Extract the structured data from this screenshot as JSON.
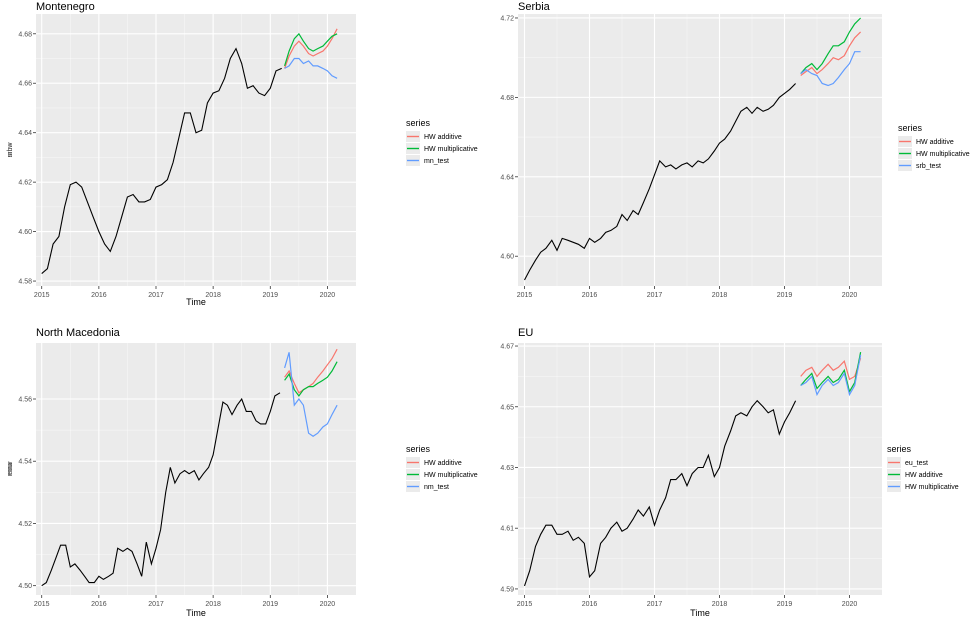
{
  "figure": {
    "background": "#ffffff",
    "panel_bg": "#ebebeb",
    "grid_color": "#ffffff",
    "line_color": "#000000"
  },
  "chart_data": [
    {
      "type": "line",
      "title": "Montenegro",
      "xlabel": "Time",
      "ylabel": "mnw",
      "legend_title": "series",
      "legend_position": "right",
      "grid": true,
      "xlim": [
        2014.9,
        2020.5
      ],
      "ylim": [
        4.578,
        4.688
      ],
      "xticks": [
        2015,
        2016,
        2017,
        2018,
        2019,
        2020
      ],
      "yticks": [
        4.58,
        4.6,
        4.62,
        4.64,
        4.66,
        4.68
      ],
      "ytick_labels": [
        "4.58",
        "4.60",
        "4.62",
        "4.64",
        "4.66",
        "4.68"
      ],
      "history": {
        "x": [
          2015.0,
          2015.1,
          2015.2,
          2015.3,
          2015.4,
          2015.5,
          2015.6,
          2015.7,
          2015.8,
          2015.9,
          2016.0,
          2016.1,
          2016.2,
          2016.3,
          2016.4,
          2016.5,
          2016.6,
          2016.7,
          2016.8,
          2016.9,
          2017.0,
          2017.1,
          2017.2,
          2017.3,
          2017.4,
          2017.5,
          2017.6,
          2017.7,
          2017.8,
          2017.9,
          2018.0,
          2018.1,
          2018.2,
          2018.3,
          2018.4,
          2018.5,
          2018.6,
          2018.7,
          2018.8,
          2018.9,
          2019.0,
          2019.1,
          2019.2
        ],
        "y": [
          4.583,
          4.585,
          4.595,
          4.598,
          4.61,
          4.619,
          4.62,
          4.618,
          4.612,
          4.606,
          4.6,
          4.595,
          4.592,
          4.598,
          4.606,
          4.614,
          4.615,
          4.612,
          4.612,
          4.613,
          4.618,
          4.619,
          4.621,
          4.628,
          4.638,
          4.648,
          4.648,
          4.64,
          4.641,
          4.652,
          4.656,
          4.657,
          4.662,
          4.67,
          4.674,
          4.668,
          4.658,
          4.659,
          4.656,
          4.655,
          4.658,
          4.665,
          4.666
        ]
      },
      "series": [
        {
          "name": "HW additive",
          "color": "#f8766d",
          "x": [
            2019.25,
            2019.33,
            2019.42,
            2019.5,
            2019.58,
            2019.67,
            2019.75,
            2019.83,
            2019.92,
            2020.0,
            2020.08,
            2020.17
          ],
          "y": [
            4.666,
            4.671,
            4.675,
            4.677,
            4.675,
            4.672,
            4.671,
            4.672,
            4.673,
            4.675,
            4.678,
            4.682
          ]
        },
        {
          "name": "HW multiplicative",
          "color": "#00ba38",
          "x": [
            2019.25,
            2019.33,
            2019.42,
            2019.5,
            2019.58,
            2019.67,
            2019.75,
            2019.83,
            2019.92,
            2020.0,
            2020.08,
            2020.17
          ],
          "y": [
            4.667,
            4.673,
            4.678,
            4.68,
            4.677,
            4.674,
            4.673,
            4.674,
            4.675,
            4.677,
            4.679,
            4.68
          ]
        },
        {
          "name": "mn_test",
          "color": "#619cff",
          "x": [
            2019.25,
            2019.33,
            2019.42,
            2019.5,
            2019.58,
            2019.67,
            2019.75,
            2019.83,
            2019.92,
            2020.0,
            2020.08,
            2020.17
          ],
          "y": [
            4.666,
            4.667,
            4.67,
            4.67,
            4.668,
            4.669,
            4.667,
            4.667,
            4.666,
            4.665,
            4.663,
            4.662
          ]
        }
      ]
    },
    {
      "type": "line",
      "title": "Serbia",
      "xlabel": "",
      "ylabel": "srbw",
      "legend_title": "series",
      "legend_position": "right",
      "grid": true,
      "xlim": [
        2014.9,
        2020.5
      ],
      "ylim": [
        4.585,
        4.722
      ],
      "xticks": [
        2015,
        2016,
        2017,
        2018,
        2019,
        2020
      ],
      "yticks": [
        4.6,
        4.64,
        4.68,
        4.72
      ],
      "ytick_labels": [
        "4.60",
        "4.64",
        "4.68",
        "4.72"
      ],
      "history": {
        "x": [
          2015.0,
          2015.08,
          2015.17,
          2015.25,
          2015.33,
          2015.42,
          2015.5,
          2015.58,
          2015.67,
          2015.75,
          2015.83,
          2015.92,
          2016.0,
          2016.08,
          2016.17,
          2016.25,
          2016.33,
          2016.42,
          2016.5,
          2016.58,
          2016.67,
          2016.75,
          2016.83,
          2016.92,
          2017.0,
          2017.08,
          2017.17,
          2017.25,
          2017.33,
          2017.42,
          2017.5,
          2017.58,
          2017.67,
          2017.75,
          2017.83,
          2017.92,
          2018.0,
          2018.08,
          2018.17,
          2018.25,
          2018.33,
          2018.42,
          2018.5,
          2018.58,
          2018.67,
          2018.75,
          2018.83,
          2018.92,
          2019.0,
          2019.08,
          2019.17
        ],
        "y": [
          4.588,
          4.593,
          4.598,
          4.602,
          4.604,
          4.608,
          4.603,
          4.609,
          4.608,
          4.607,
          4.606,
          4.604,
          4.609,
          4.607,
          4.609,
          4.612,
          4.613,
          4.615,
          4.621,
          4.618,
          4.623,
          4.621,
          4.627,
          4.634,
          4.641,
          4.648,
          4.645,
          4.646,
          4.644,
          4.646,
          4.647,
          4.645,
          4.648,
          4.647,
          4.649,
          4.653,
          4.657,
          4.659,
          4.663,
          4.668,
          4.673,
          4.675,
          4.672,
          4.675,
          4.673,
          4.674,
          4.676,
          4.68,
          4.682,
          4.684,
          4.687
        ]
      },
      "series": [
        {
          "name": "HW additive",
          "color": "#f8766d",
          "x": [
            2019.25,
            2019.33,
            2019.42,
            2019.5,
            2019.58,
            2019.67,
            2019.75,
            2019.83,
            2019.92,
            2020.0,
            2020.08,
            2020.17
          ],
          "y": [
            4.691,
            4.693,
            4.695,
            4.692,
            4.694,
            4.697,
            4.7,
            4.699,
            4.701,
            4.706,
            4.71,
            4.713
          ]
        },
        {
          "name": "HW multiplicative",
          "color": "#00ba38",
          "x": [
            2019.25,
            2019.33,
            2019.42,
            2019.5,
            2019.58,
            2019.67,
            2019.75,
            2019.83,
            2019.92,
            2020.0,
            2020.08,
            2020.17
          ],
          "y": [
            4.692,
            4.695,
            4.697,
            4.694,
            4.697,
            4.702,
            4.706,
            4.706,
            4.708,
            4.713,
            4.717,
            4.72
          ]
        },
        {
          "name": "srb_test",
          "color": "#619cff",
          "x": [
            2019.25,
            2019.33,
            2019.42,
            2019.5,
            2019.58,
            2019.67,
            2019.75,
            2019.83,
            2019.92,
            2020.0,
            2020.08,
            2020.17
          ],
          "y": [
            4.692,
            4.694,
            4.692,
            4.691,
            4.687,
            4.686,
            4.687,
            4.69,
            4.694,
            4.697,
            4.703,
            4.703
          ]
        }
      ]
    },
    {
      "type": "line",
      "title": "North Macedonia",
      "xlabel": "Time",
      "ylabel": "nmw",
      "legend_title": "series",
      "legend_position": "right",
      "grid": true,
      "xlim": [
        2014.9,
        2020.5
      ],
      "ylim": [
        4.497,
        4.578
      ],
      "xticks": [
        2015,
        2016,
        2017,
        2018,
        2019,
        2020
      ],
      "yticks": [
        4.5,
        4.52,
        4.54,
        4.56
      ],
      "ytick_labels": [
        "4.50",
        "4.52",
        "4.54",
        "4.56"
      ],
      "history": {
        "x": [
          2015.0,
          2015.08,
          2015.17,
          2015.25,
          2015.33,
          2015.42,
          2015.5,
          2015.58,
          2015.67,
          2015.75,
          2015.83,
          2015.92,
          2016.0,
          2016.08,
          2016.17,
          2016.25,
          2016.33,
          2016.42,
          2016.5,
          2016.58,
          2016.67,
          2016.75,
          2016.83,
          2016.92,
          2017.0,
          2017.08,
          2017.17,
          2017.25,
          2017.33,
          2017.42,
          2017.5,
          2017.58,
          2017.67,
          2017.75,
          2017.83,
          2017.92,
          2018.0,
          2018.08,
          2018.17,
          2018.25,
          2018.33,
          2018.42,
          2018.5,
          2018.58,
          2018.67,
          2018.75,
          2018.83,
          2018.92,
          2019.0,
          2019.08,
          2019.17
        ],
        "y": [
          4.5,
          4.501,
          4.505,
          4.509,
          4.513,
          4.513,
          4.506,
          4.507,
          4.505,
          4.503,
          4.501,
          4.501,
          4.503,
          4.502,
          4.503,
          4.504,
          4.512,
          4.511,
          4.512,
          4.511,
          4.507,
          4.503,
          4.514,
          4.507,
          4.512,
          4.518,
          4.53,
          4.538,
          4.533,
          4.536,
          4.537,
          4.536,
          4.537,
          4.534,
          4.536,
          4.538,
          4.542,
          4.55,
          4.559,
          4.558,
          4.555,
          4.558,
          4.56,
          4.556,
          4.556,
          4.553,
          4.552,
          4.552,
          4.556,
          4.561,
          4.562
        ]
      },
      "series": [
        {
          "name": "HW additive",
          "color": "#f8766d",
          "x": [
            2019.25,
            2019.33,
            2019.42,
            2019.5,
            2019.58,
            2019.67,
            2019.75,
            2019.83,
            2019.92,
            2020.0,
            2020.08,
            2020.17
          ],
          "y": [
            4.567,
            4.569,
            4.565,
            4.562,
            4.563,
            4.564,
            4.565,
            4.567,
            4.569,
            4.571,
            4.573,
            4.576
          ]
        },
        {
          "name": "HW multiplicative",
          "color": "#00ba38",
          "x": [
            2019.25,
            2019.33,
            2019.42,
            2019.5,
            2019.58,
            2019.67,
            2019.75,
            2019.83,
            2019.92,
            2020.0,
            2020.08,
            2020.17
          ],
          "y": [
            4.566,
            4.568,
            4.563,
            4.561,
            4.563,
            4.564,
            4.564,
            4.565,
            4.566,
            4.567,
            4.569,
            4.572
          ]
        },
        {
          "name": "nm_test",
          "color": "#619cff",
          "x": [
            2019.25,
            2019.33,
            2019.42,
            2019.5,
            2019.58,
            2019.67,
            2019.75,
            2019.83,
            2019.92,
            2020.0,
            2020.08,
            2020.17
          ],
          "y": [
            4.57,
            4.575,
            4.558,
            4.56,
            4.558,
            4.549,
            4.548,
            4.549,
            4.551,
            4.552,
            4.555,
            4.558
          ]
        }
      ]
    },
    {
      "type": "line",
      "title": "EU",
      "xlabel": "Time",
      "ylabel": "euw",
      "legend_title": "series",
      "legend_position": "right",
      "grid": true,
      "xlim": [
        2014.9,
        2020.5
      ],
      "ylim": [
        4.588,
        4.671
      ],
      "xticks": [
        2015,
        2016,
        2017,
        2018,
        2019,
        2020
      ],
      "yticks": [
        4.59,
        4.61,
        4.63,
        4.65,
        4.67
      ],
      "ytick_labels": [
        "4.59",
        "4.61",
        "4.63",
        "4.65",
        "4.67"
      ],
      "history": {
        "x": [
          2015.0,
          2015.08,
          2015.17,
          2015.25,
          2015.33,
          2015.42,
          2015.5,
          2015.58,
          2015.67,
          2015.75,
          2015.83,
          2015.92,
          2016.0,
          2016.08,
          2016.17,
          2016.25,
          2016.33,
          2016.42,
          2016.5,
          2016.58,
          2016.67,
          2016.75,
          2016.83,
          2016.92,
          2017.0,
          2017.08,
          2017.17,
          2017.25,
          2017.33,
          2017.42,
          2017.5,
          2017.58,
          2017.67,
          2017.75,
          2017.83,
          2017.92,
          2018.0,
          2018.08,
          2018.17,
          2018.25,
          2018.33,
          2018.42,
          2018.5,
          2018.58,
          2018.67,
          2018.75,
          2018.83,
          2018.92,
          2019.0,
          2019.08,
          2019.17
        ],
        "y": [
          4.591,
          4.596,
          4.604,
          4.608,
          4.611,
          4.611,
          4.608,
          4.608,
          4.609,
          4.606,
          4.607,
          4.605,
          4.594,
          4.596,
          4.605,
          4.607,
          4.61,
          4.612,
          4.609,
          4.61,
          4.613,
          4.616,
          4.614,
          4.617,
          4.611,
          4.616,
          4.62,
          4.626,
          4.626,
          4.628,
          4.624,
          4.628,
          4.63,
          4.63,
          4.634,
          4.627,
          4.63,
          4.637,
          4.642,
          4.647,
          4.648,
          4.647,
          4.65,
          4.652,
          4.65,
          4.648,
          4.649,
          4.641,
          4.645,
          4.648,
          4.652
        ]
      },
      "series": [
        {
          "name": "eu_test",
          "color": "#f8766d",
          "x": [
            2019.25,
            2019.33,
            2019.42,
            2019.5,
            2019.58,
            2019.67,
            2019.75,
            2019.83,
            2019.92,
            2020.0,
            2020.08,
            2020.17
          ],
          "y": [
            4.66,
            4.662,
            4.663,
            4.66,
            4.662,
            4.664,
            4.662,
            4.663,
            4.665,
            4.659,
            4.66,
            4.666
          ]
        },
        {
          "name": "HW additive",
          "color": "#00ba38",
          "x": [
            2019.25,
            2019.33,
            2019.42,
            2019.5,
            2019.58,
            2019.67,
            2019.75,
            2019.83,
            2019.92,
            2020.0,
            2020.08,
            2020.17
          ],
          "y": [
            4.657,
            4.659,
            4.661,
            4.656,
            4.658,
            4.66,
            4.658,
            4.659,
            4.662,
            4.655,
            4.658,
            4.668
          ]
        },
        {
          "name": "HW multiplicative",
          "color": "#619cff",
          "x": [
            2019.25,
            2019.33,
            2019.42,
            2019.5,
            2019.58,
            2019.67,
            2019.75,
            2019.83,
            2019.92,
            2020.0,
            2020.08,
            2020.17
          ],
          "y": [
            4.657,
            4.658,
            4.66,
            4.654,
            4.657,
            4.659,
            4.657,
            4.658,
            4.661,
            4.654,
            4.657,
            4.667
          ]
        }
      ]
    }
  ]
}
